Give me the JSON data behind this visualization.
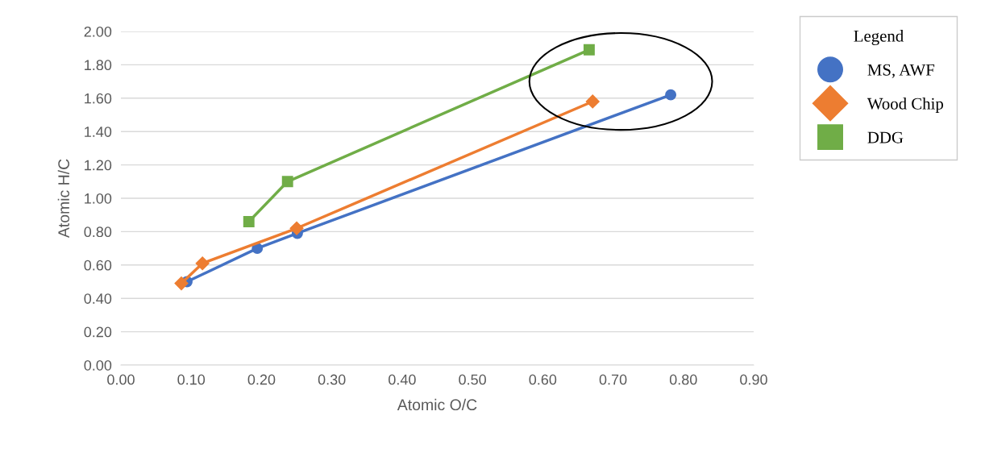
{
  "chart_data": {
    "type": "line",
    "xlabel": "Atomic O/C",
    "ylabel": "Atomic H/C",
    "legend_title": "Legend",
    "legend": "right",
    "grid": "y",
    "xlim": [
      0,
      0.9
    ],
    "xticks": [
      {
        "value": 0,
        "label": "0.00"
      },
      {
        "value": 0.1,
        "label": "0.10"
      },
      {
        "value": 0.2,
        "label": "0.20"
      },
      {
        "value": 0.3,
        "label": "0.30"
      },
      {
        "value": 0.4,
        "label": "0.40"
      },
      {
        "value": 0.5,
        "label": "0.50"
      },
      {
        "value": 0.6,
        "label": "0.60"
      },
      {
        "value": 0.7,
        "label": "0.70"
      },
      {
        "value": 0.8,
        "label": "0.80"
      },
      {
        "value": 0.9,
        "label": "0.90"
      }
    ],
    "ylim": [
      0,
      2
    ],
    "yticks": [
      {
        "value": 0,
        "label": "0.00"
      },
      {
        "value": 0.2,
        "label": "0.20"
      },
      {
        "value": 0.4,
        "label": "0.40"
      },
      {
        "value": 0.6,
        "label": "0.60"
      },
      {
        "value": 0.8,
        "label": "0.80"
      },
      {
        "value": 1.0,
        "label": "1.00"
      },
      {
        "value": 1.2,
        "label": "1.20"
      },
      {
        "value": 1.4,
        "label": "1.40"
      },
      {
        "value": 1.6,
        "label": "1.60"
      },
      {
        "value": 1.8,
        "label": "1.80"
      },
      {
        "value": 2.0,
        "label": "2.00"
      }
    ],
    "series": [
      {
        "name": "MS, AWF",
        "color": "#4472c4",
        "marker": "circle",
        "x": [
          0.094,
          0.194,
          0.251,
          0.782
        ],
        "values": [
          0.5,
          0.7,
          0.79,
          1.62
        ]
      },
      {
        "name": "Wood Chip",
        "color": "#ed7d31",
        "marker": "diamond",
        "x": [
          0.086,
          0.116,
          0.25,
          0.671
        ],
        "values": [
          0.49,
          0.61,
          0.82,
          1.58
        ]
      },
      {
        "name": "DDG",
        "color": "#70ad47",
        "marker": "square",
        "x": [
          0.182,
          0.237,
          0.666
        ],
        "values": [
          0.86,
          1.1,
          1.89
        ]
      }
    ]
  }
}
